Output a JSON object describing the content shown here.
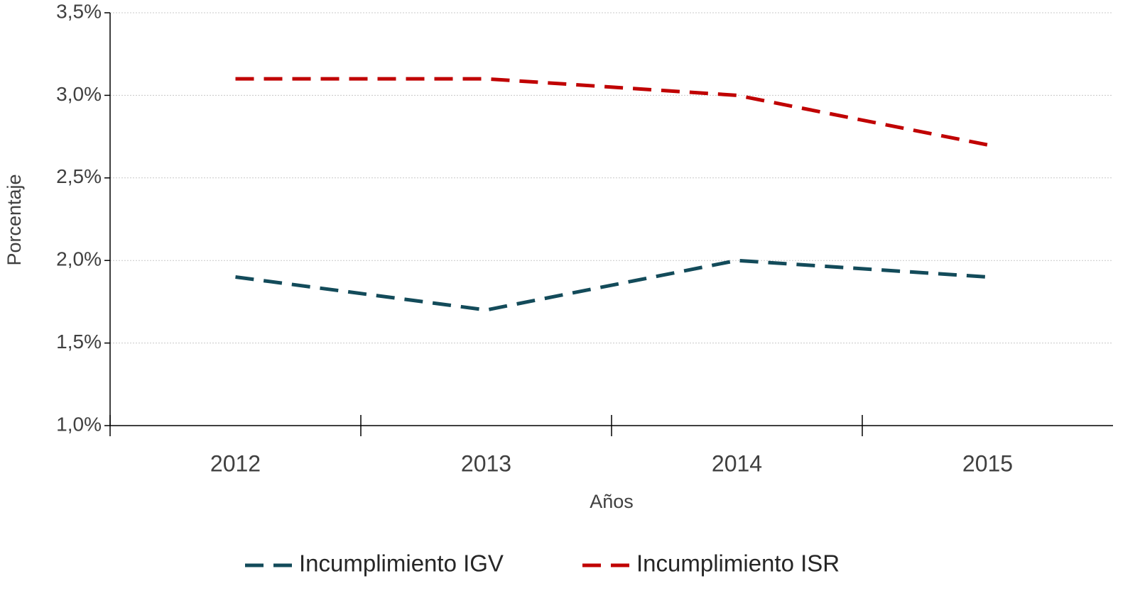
{
  "chart_data": {
    "type": "line",
    "categories": [
      "2012",
      "2013",
      "2014",
      "2015"
    ],
    "series": [
      {
        "name": "Incumplimiento IGV",
        "color": "#134b5a",
        "values": [
          1.9,
          1.7,
          2.0,
          1.9
        ]
      },
      {
        "name": "Incumplimiento ISR",
        "color": "#c00000",
        "values": [
          3.1,
          3.1,
          3.0,
          2.7
        ]
      }
    ],
    "ylim": [
      1.0,
      3.5
    ],
    "yticks": [
      {
        "value": 1.0,
        "label": "1,0%"
      },
      {
        "value": 1.5,
        "label": "1,5%"
      },
      {
        "value": 2.0,
        "label": "2,0%"
      },
      {
        "value": 2.5,
        "label": "2,5%"
      },
      {
        "value": 3.0,
        "label": "3,0%"
      },
      {
        "value": 3.5,
        "label": "3,5%"
      }
    ],
    "ylabel": "Porcentaje",
    "xlabel": "Años",
    "grid": true,
    "legend": "bottom"
  }
}
